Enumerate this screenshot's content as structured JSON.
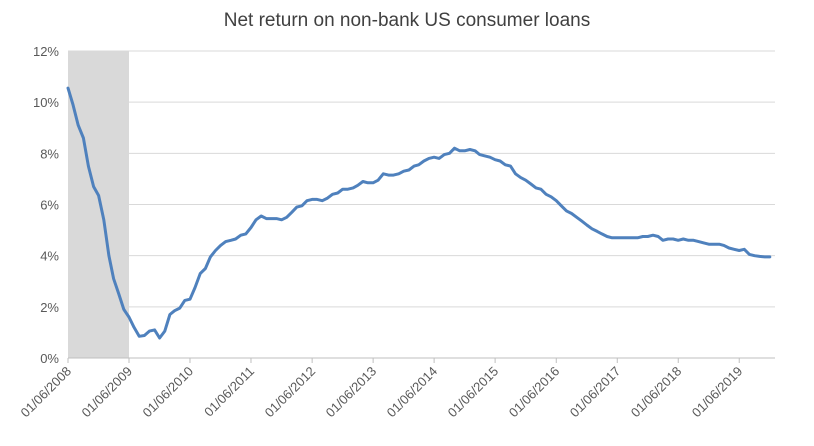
{
  "chart_data": {
    "type": "line",
    "title": "Net return on non-bank US consumer loans",
    "xlabel": "",
    "ylabel": "",
    "grid": true,
    "legend": "none",
    "shaded_region": {
      "from": "2008-06-01",
      "to": "2009-06-01",
      "color": "#d9d9d9"
    },
    "ylim": [
      0,
      12
    ],
    "y_ticks": [
      "0%",
      "2%",
      "4%",
      "6%",
      "8%",
      "10%",
      "12%"
    ],
    "y_tick_values": [
      0,
      2,
      4,
      6,
      8,
      10,
      12
    ],
    "x_ticks": [
      "01/06/2008",
      "01/06/2009",
      "01/06/2010",
      "01/06/2011",
      "01/06/2012",
      "01/06/2013",
      "01/06/2014",
      "01/06/2015",
      "01/06/2016",
      "01/06/2017",
      "01/06/2018",
      "01/06/2019"
    ],
    "xlim": [
      "2008-06-01",
      "2020-01-01"
    ],
    "line_color": "#4f81bd",
    "series": [
      {
        "values": [
          [
            "2008-06-01",
            10.55
          ],
          [
            "2008-07-01",
            9.9
          ],
          [
            "2008-08-01",
            9.1
          ],
          [
            "2008-09-01",
            8.6
          ],
          [
            "2008-10-01",
            7.5
          ],
          [
            "2008-11-01",
            6.7
          ],
          [
            "2008-12-01",
            6.35
          ],
          [
            "2009-01-01",
            5.4
          ],
          [
            "2009-02-01",
            4.0
          ],
          [
            "2009-03-01",
            3.1
          ],
          [
            "2009-04-01",
            2.5
          ],
          [
            "2009-05-01",
            1.9
          ],
          [
            "2009-06-01",
            1.6
          ],
          [
            "2009-07-01",
            1.2
          ],
          [
            "2009-08-01",
            0.85
          ],
          [
            "2009-09-01",
            0.88
          ],
          [
            "2009-10-01",
            1.05
          ],
          [
            "2009-11-01",
            1.1
          ],
          [
            "2009-12-01",
            0.78
          ],
          [
            "2010-01-01",
            1.05
          ],
          [
            "2010-02-01",
            1.7
          ],
          [
            "2010-03-01",
            1.85
          ],
          [
            "2010-04-01",
            1.95
          ],
          [
            "2010-05-01",
            2.25
          ],
          [
            "2010-06-01",
            2.3
          ],
          [
            "2010-07-01",
            2.75
          ],
          [
            "2010-08-01",
            3.3
          ],
          [
            "2010-09-01",
            3.5
          ],
          [
            "2010-10-01",
            3.95
          ],
          [
            "2010-11-01",
            4.2
          ],
          [
            "2010-12-01",
            4.4
          ],
          [
            "2011-01-01",
            4.55
          ],
          [
            "2011-02-01",
            4.6
          ],
          [
            "2011-03-01",
            4.65
          ],
          [
            "2011-04-01",
            4.8
          ],
          [
            "2011-05-01",
            4.85
          ],
          [
            "2011-06-01",
            5.1
          ],
          [
            "2011-07-01",
            5.4
          ],
          [
            "2011-08-01",
            5.55
          ],
          [
            "2011-09-01",
            5.45
          ],
          [
            "2011-10-01",
            5.45
          ],
          [
            "2011-11-01",
            5.45
          ],
          [
            "2011-12-01",
            5.4
          ],
          [
            "2012-01-01",
            5.5
          ],
          [
            "2012-02-01",
            5.7
          ],
          [
            "2012-03-01",
            5.9
          ],
          [
            "2012-04-01",
            5.95
          ],
          [
            "2012-05-01",
            6.15
          ],
          [
            "2012-06-01",
            6.2
          ],
          [
            "2012-07-01",
            6.2
          ],
          [
            "2012-08-01",
            6.15
          ],
          [
            "2012-09-01",
            6.25
          ],
          [
            "2012-10-01",
            6.4
          ],
          [
            "2012-11-01",
            6.45
          ],
          [
            "2012-12-01",
            6.6
          ],
          [
            "2013-01-01",
            6.6
          ],
          [
            "2013-02-01",
            6.65
          ],
          [
            "2013-03-01",
            6.75
          ],
          [
            "2013-04-01",
            6.9
          ],
          [
            "2013-05-01",
            6.85
          ],
          [
            "2013-06-01",
            6.85
          ],
          [
            "2013-07-01",
            6.95
          ],
          [
            "2013-08-01",
            7.2
          ],
          [
            "2013-09-01",
            7.15
          ],
          [
            "2013-10-01",
            7.15
          ],
          [
            "2013-11-01",
            7.2
          ],
          [
            "2013-12-01",
            7.3
          ],
          [
            "2014-01-01",
            7.35
          ],
          [
            "2014-02-01",
            7.5
          ],
          [
            "2014-03-01",
            7.55
          ],
          [
            "2014-04-01",
            7.7
          ],
          [
            "2014-05-01",
            7.8
          ],
          [
            "2014-06-01",
            7.85
          ],
          [
            "2014-07-01",
            7.8
          ],
          [
            "2014-08-01",
            7.95
          ],
          [
            "2014-09-01",
            8.0
          ],
          [
            "2014-10-01",
            8.2
          ],
          [
            "2014-11-01",
            8.1
          ],
          [
            "2014-12-01",
            8.1
          ],
          [
            "2015-01-01",
            8.15
          ],
          [
            "2015-02-01",
            8.1
          ],
          [
            "2015-03-01",
            7.95
          ],
          [
            "2015-04-01",
            7.9
          ],
          [
            "2015-05-01",
            7.85
          ],
          [
            "2015-06-01",
            7.75
          ],
          [
            "2015-07-01",
            7.7
          ],
          [
            "2015-08-01",
            7.55
          ],
          [
            "2015-09-01",
            7.5
          ],
          [
            "2015-10-01",
            7.2
          ],
          [
            "2015-11-01",
            7.05
          ],
          [
            "2015-12-01",
            6.95
          ],
          [
            "2016-01-01",
            6.8
          ],
          [
            "2016-02-01",
            6.65
          ],
          [
            "2016-03-01",
            6.6
          ],
          [
            "2016-04-01",
            6.4
          ],
          [
            "2016-05-01",
            6.3
          ],
          [
            "2016-06-01",
            6.15
          ],
          [
            "2016-07-01",
            5.95
          ],
          [
            "2016-08-01",
            5.75
          ],
          [
            "2016-09-01",
            5.65
          ],
          [
            "2016-10-01",
            5.5
          ],
          [
            "2016-11-01",
            5.35
          ],
          [
            "2016-12-01",
            5.2
          ],
          [
            "2017-01-01",
            5.05
          ],
          [
            "2017-02-01",
            4.95
          ],
          [
            "2017-03-01",
            4.85
          ],
          [
            "2017-04-01",
            4.75
          ],
          [
            "2017-05-01",
            4.7
          ],
          [
            "2017-06-01",
            4.7
          ],
          [
            "2017-07-01",
            4.7
          ],
          [
            "2017-08-01",
            4.7
          ],
          [
            "2017-09-01",
            4.7
          ],
          [
            "2017-10-01",
            4.7
          ],
          [
            "2017-11-01",
            4.75
          ],
          [
            "2017-12-01",
            4.75
          ],
          [
            "2018-01-01",
            4.8
          ],
          [
            "2018-02-01",
            4.75
          ],
          [
            "2018-03-01",
            4.6
          ],
          [
            "2018-04-01",
            4.65
          ],
          [
            "2018-05-01",
            4.65
          ],
          [
            "2018-06-01",
            4.6
          ],
          [
            "2018-07-01",
            4.65
          ],
          [
            "2018-08-01",
            4.6
          ],
          [
            "2018-09-01",
            4.6
          ],
          [
            "2018-10-01",
            4.55
          ],
          [
            "2018-11-01",
            4.5
          ],
          [
            "2018-12-01",
            4.45
          ],
          [
            "2019-01-01",
            4.45
          ],
          [
            "2019-02-01",
            4.45
          ],
          [
            "2019-03-01",
            4.4
          ],
          [
            "2019-04-01",
            4.3
          ],
          [
            "2019-05-01",
            4.25
          ],
          [
            "2019-06-01",
            4.2
          ],
          [
            "2019-07-01",
            4.25
          ],
          [
            "2019-08-01",
            4.05
          ],
          [
            "2019-09-01",
            4.0
          ],
          [
            "2019-10-01",
            3.97
          ],
          [
            "2019-11-01",
            3.95
          ],
          [
            "2019-12-01",
            3.95
          ]
        ]
      }
    ]
  }
}
